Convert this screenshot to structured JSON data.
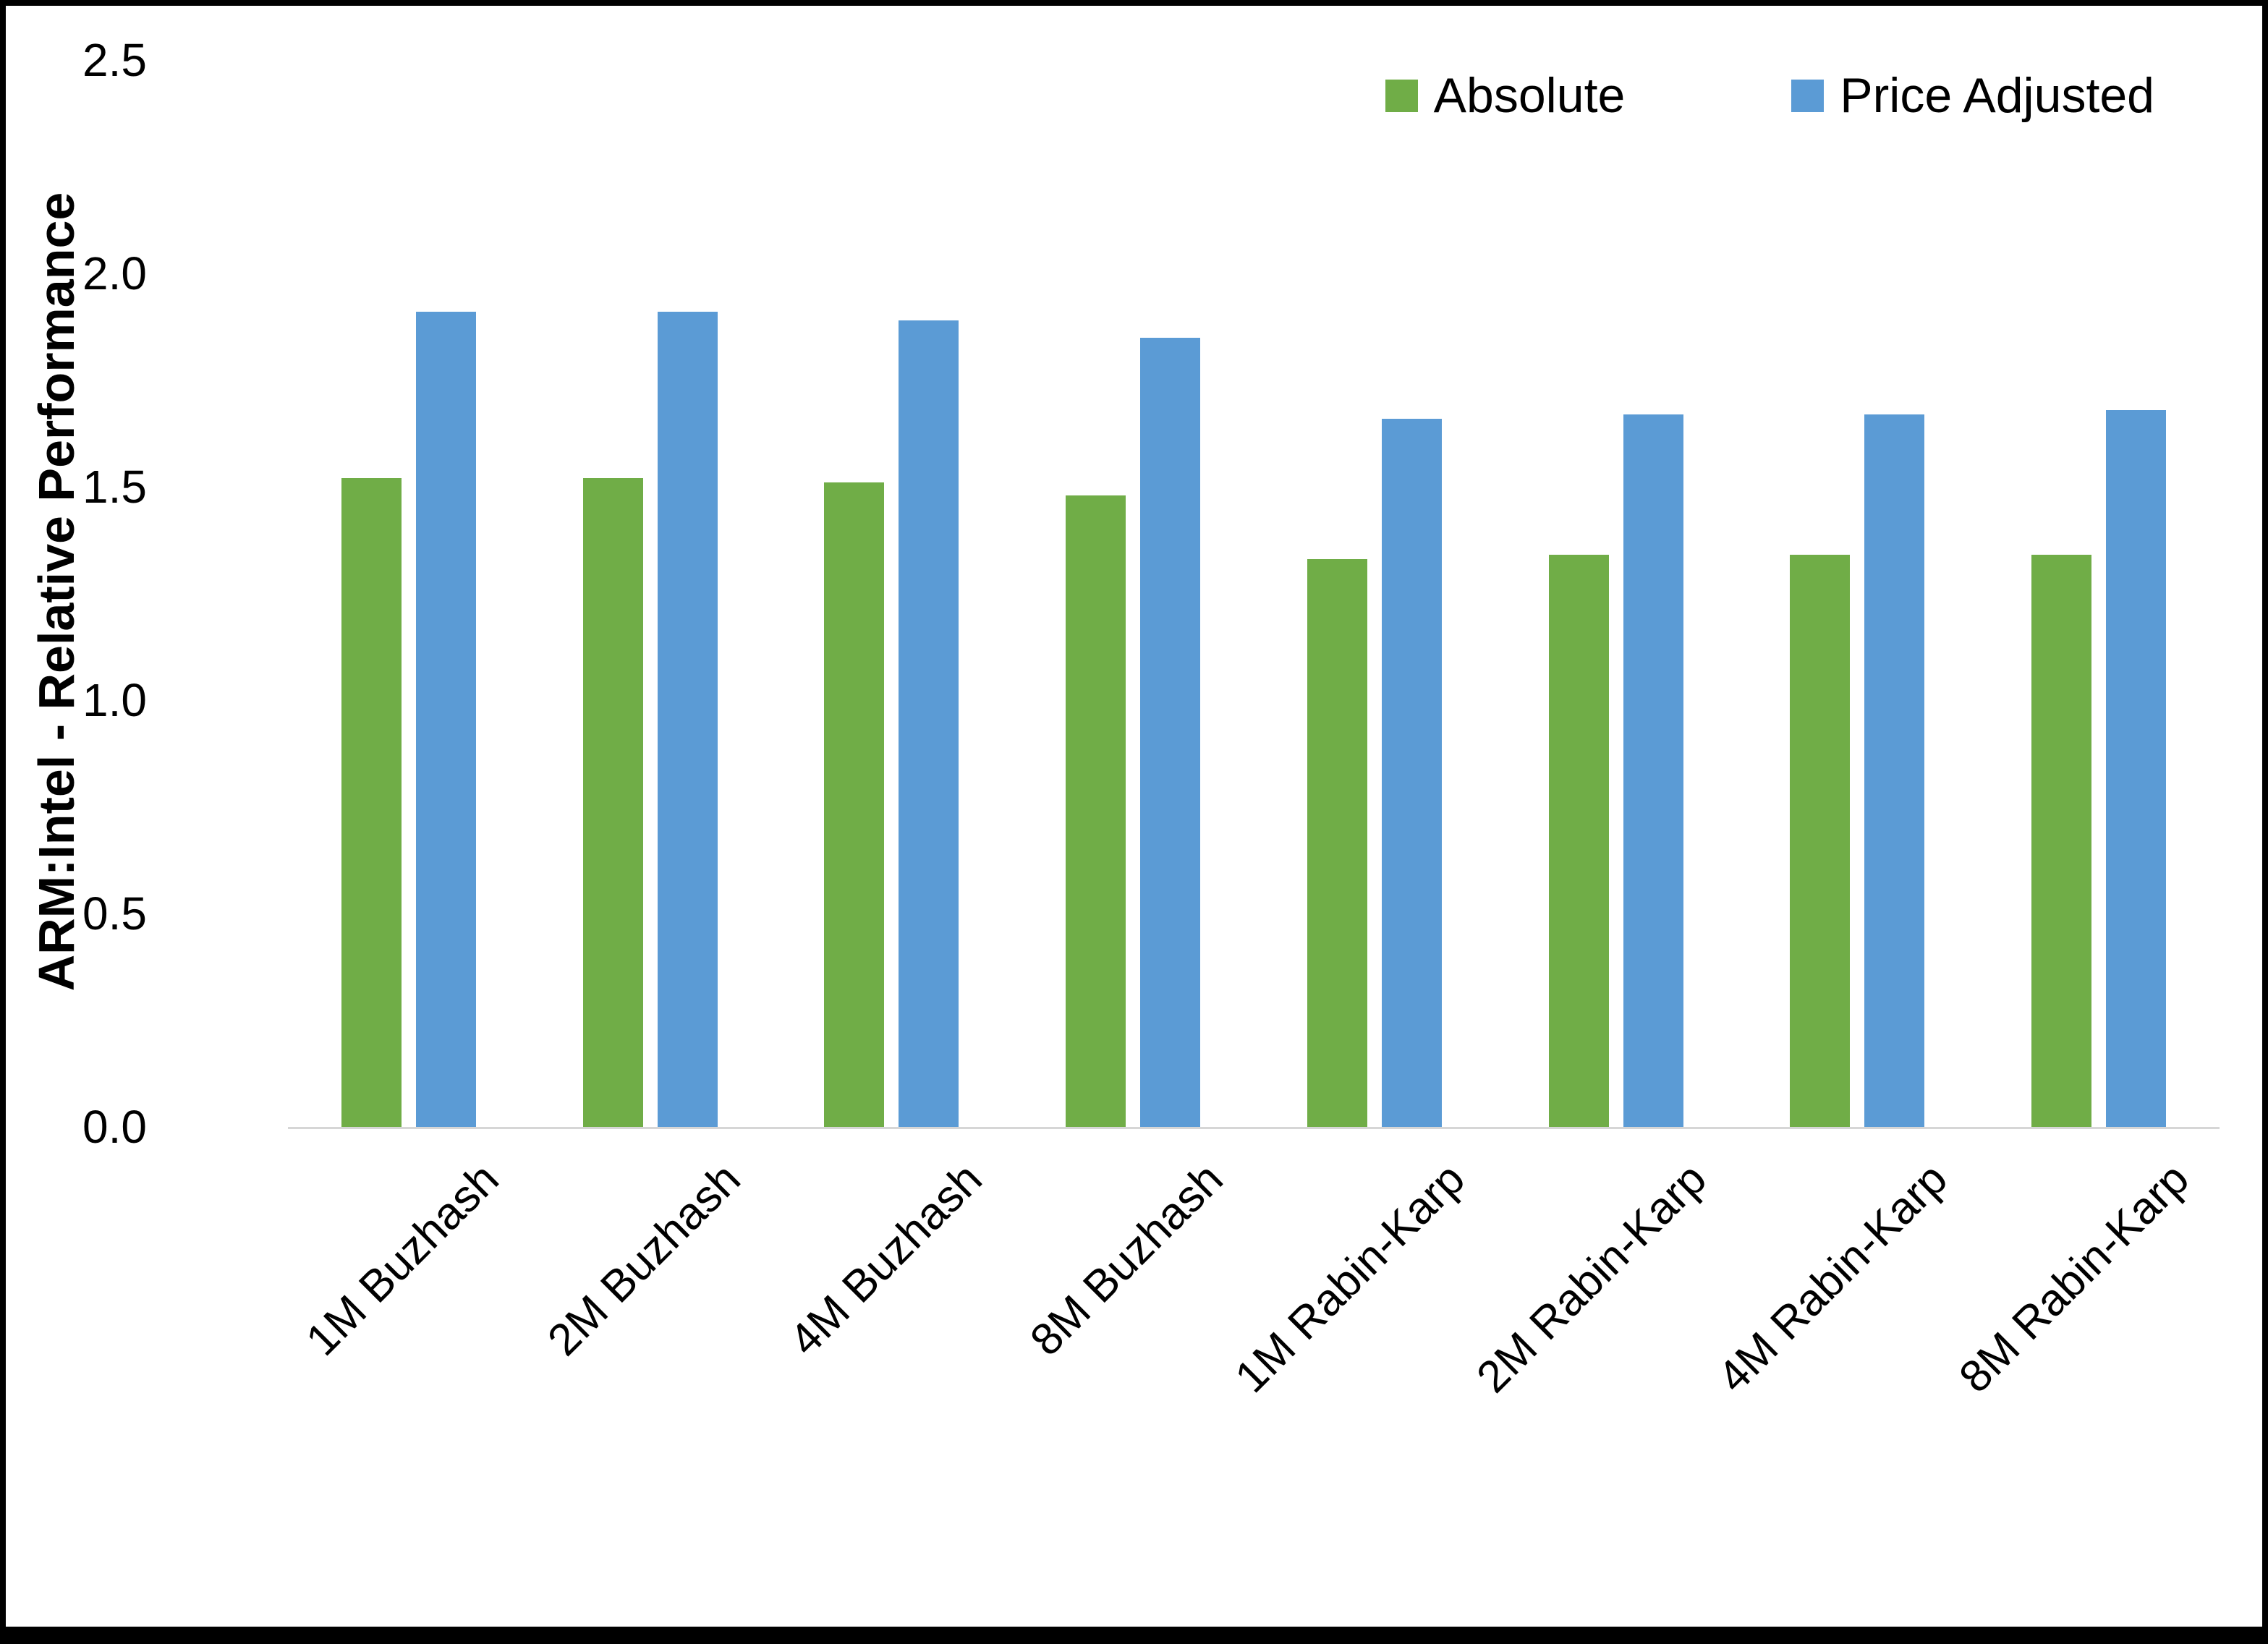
{
  "chart_data": {
    "type": "bar",
    "title": "",
    "xlabel": "",
    "ylabel": "ARM:Intel - Relative Performance",
    "ylim": [
      0,
      2.5
    ],
    "y_ticks": [
      "0.0",
      "0.5",
      "1.0",
      "1.5",
      "2.0",
      "2.5"
    ],
    "grid": false,
    "legend_position": "top-right",
    "categories": [
      "1M Buzhash",
      "2M Buzhash",
      "4M Buzhash",
      "8M Buzhash",
      "1M Rabin-Karp",
      "2M Rabin-Karp",
      "4M Rabin-Karp",
      "8M Rabin-Karp"
    ],
    "series": [
      {
        "name": "Absolute",
        "color": "#70AD47",
        "values": [
          1.52,
          1.52,
          1.51,
          1.48,
          1.33,
          1.34,
          1.34,
          1.34
        ]
      },
      {
        "name": "Price Adjusted",
        "color": "#5B9BD5",
        "values": [
          1.91,
          1.91,
          1.89,
          1.85,
          1.66,
          1.67,
          1.67,
          1.68
        ]
      }
    ],
    "colors": {
      "axis_line": "#d6d6d6",
      "text": "#000000",
      "border": "#000000",
      "background": "#ffffff"
    }
  }
}
